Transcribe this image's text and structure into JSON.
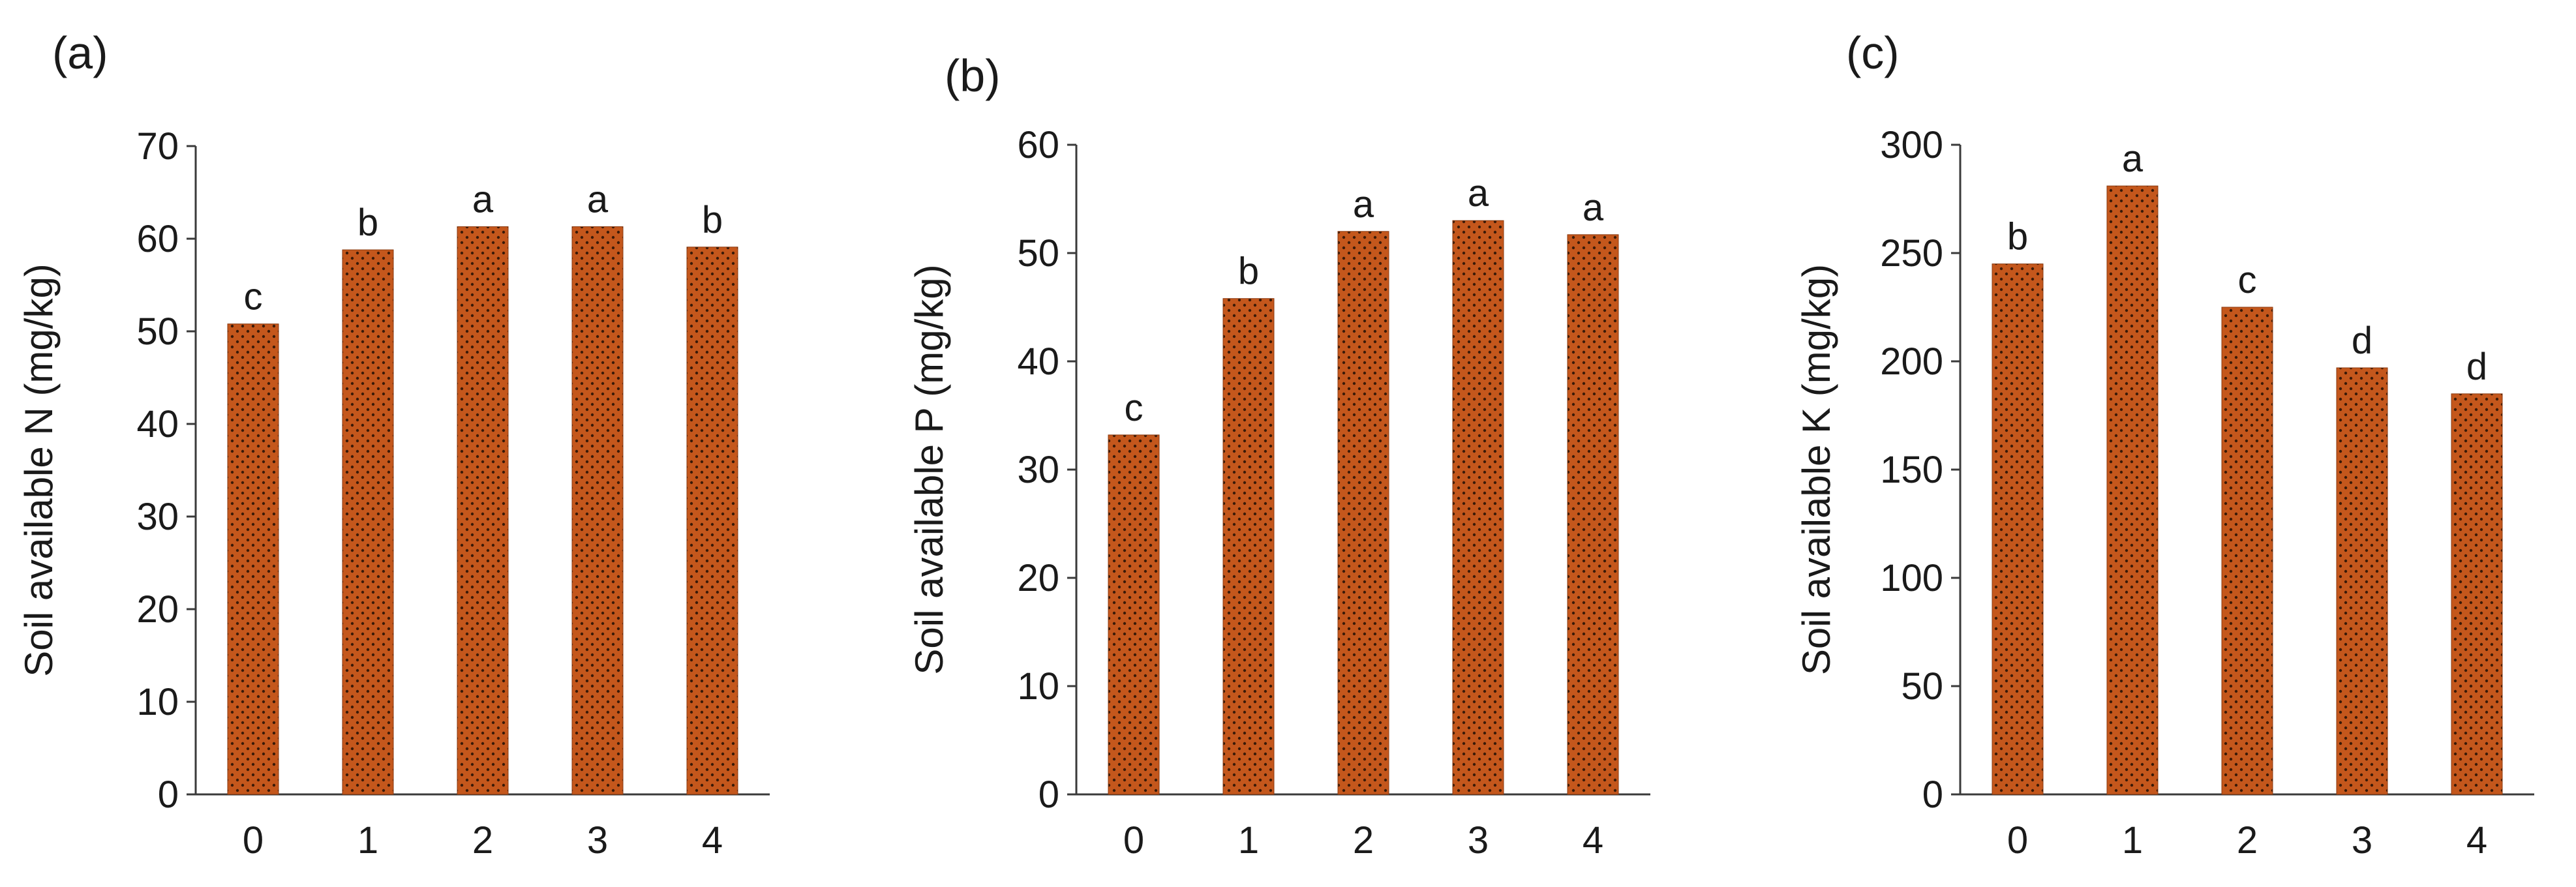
{
  "chart_data": [
    {
      "type": "bar",
      "panel": "(a)",
      "categories": [
        "0",
        "1",
        "2",
        "3",
        "4"
      ],
      "values": [
        50.8,
        58.8,
        61.3,
        61.3,
        59.1
      ],
      "significance": [
        "c",
        "b",
        "a",
        "a",
        "b"
      ],
      "ylabel": "Soil available  N (mg/kg)",
      "xlabel": "",
      "ylim": [
        0,
        70
      ],
      "yticks": [
        0,
        10,
        20,
        30,
        40,
        50,
        60,
        70
      ],
      "grid": false
    },
    {
      "type": "bar",
      "panel": "(b)",
      "categories": [
        "0",
        "1",
        "2",
        "3",
        "4"
      ],
      "values": [
        33.2,
        45.8,
        52.0,
        53.0,
        51.7
      ],
      "significance": [
        "c",
        "b",
        "a",
        "a",
        "a"
      ],
      "ylabel": "Soil available  P (mg/kg)",
      "xlabel": "",
      "ylim": [
        0,
        60
      ],
      "yticks": [
        0,
        10,
        20,
        30,
        40,
        50,
        60
      ],
      "grid": false
    },
    {
      "type": "bar",
      "panel": "(c)",
      "categories": [
        "0",
        "1",
        "2",
        "3",
        "4"
      ],
      "values": [
        245,
        281,
        225,
        197,
        185
      ],
      "significance": [
        "b",
        "a",
        "c",
        "d",
        "d"
      ],
      "ylabel": "Soil available  K (mg/kg)",
      "xlabel": "",
      "ylim": [
        0,
        300
      ],
      "yticks": [
        0,
        50,
        100,
        150,
        200,
        250,
        300
      ],
      "grid": false
    }
  ],
  "colors": {
    "bar_fill": "#c4571c",
    "bar_dots": "#3a1a08",
    "axis": "#3a3a3a"
  }
}
